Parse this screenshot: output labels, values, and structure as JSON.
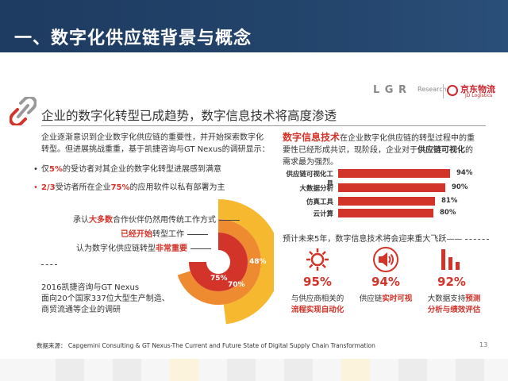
{
  "header": {
    "title": "一、数字化供应链背景与概念"
  },
  "logos": {
    "logr_main": "L  G R",
    "logr_sub": "Research",
    "jd_name": "京东物流",
    "jd_sub": "JD Logistics"
  },
  "section": {
    "heading": "企业的数字化转型已成趋势，数字信息技术将高度渗透"
  },
  "intro": {
    "line1": "企业逐渐意识到企业数字化供应链的重要性，并开始探索数字化",
    "line2": "转型。但进展挑战重重，基于凯捷咨询与GT Nexus的调研显示：",
    "bullet1_pre": "仅",
    "bullet1_hl": "5%",
    "bullet1_post": "的受访者对其企业的数字化转型进展感到满意",
    "bullet2_hl1": "2/3",
    "bullet2_mid": "受访者所在企业",
    "bullet2_hl2": "75%",
    "bullet2_post": "的应用软件以私有部署为主"
  },
  "survey": {
    "item1_pre": "承认",
    "item1_hl": "大多数",
    "item1_post": "合作伙伴仍然用传统工作方式",
    "item2_hl": "已经开始",
    "item2_post": "转型工作",
    "item3_pre": "认为数字化供应链转型",
    "item3_hl": "非常重要"
  },
  "donut": {
    "values": [
      "75%",
      "70%",
      "48%"
    ],
    "fractions": [
      0.75,
      0.7,
      0.48
    ]
  },
  "source_note": {
    "line1": "2016凯捷咨询与GT Nexus",
    "line2": "面向20个国家337位大型生产制造、",
    "line3": "商贸流通等企业的调研"
  },
  "right": {
    "heading_big": "数字信息技术",
    "heading_1": "在企业数字化供应链的转型过程中的重",
    "heading_2": "要性已经形成共识，现阶段，企业对于",
    "heading_bold": "供应链可视化",
    "heading_3": "的",
    "heading_4": "需求最为强烈。"
  },
  "chart_data": {
    "type": "bar",
    "categories": [
      "供应链可视化工具",
      "大数据分析",
      "仿真工具",
      "云计算"
    ],
    "values": [
      94,
      90,
      81,
      80
    ],
    "value_labels": [
      "94%",
      "90%",
      "81%",
      "80%"
    ]
  },
  "forecast": {
    "text": "预计未来5年，数字信息技术将会迎来重大飞跃——"
  },
  "stats": [
    {
      "pct": "95%",
      "cap_line1": "与供应商相关的",
      "cap_hl": "流程实现自动化",
      "icon": "gear-icon"
    },
    {
      "pct": "94%",
      "cap_pre": "供应链",
      "cap_hl": "实时可视",
      "icon": "speaker-icon"
    },
    {
      "pct": "92%",
      "cap_line1_pre": "大数据支持",
      "cap_line1_hl": "预测",
      "cap_line2_hl": "分析与绩效评估",
      "icon": "bar-chart-icon"
    }
  ],
  "footer": {
    "source": "数据来源： Capgemini Consulting & GT Nexus-The Current and Future State of Digital Supply Chain Transformation",
    "page": "13"
  },
  "colors": {
    "header_bg": "#1e3b61",
    "accent_red": "#d2342a",
    "orange": "#ee8a2f",
    "yellow": "#f5b82e"
  }
}
